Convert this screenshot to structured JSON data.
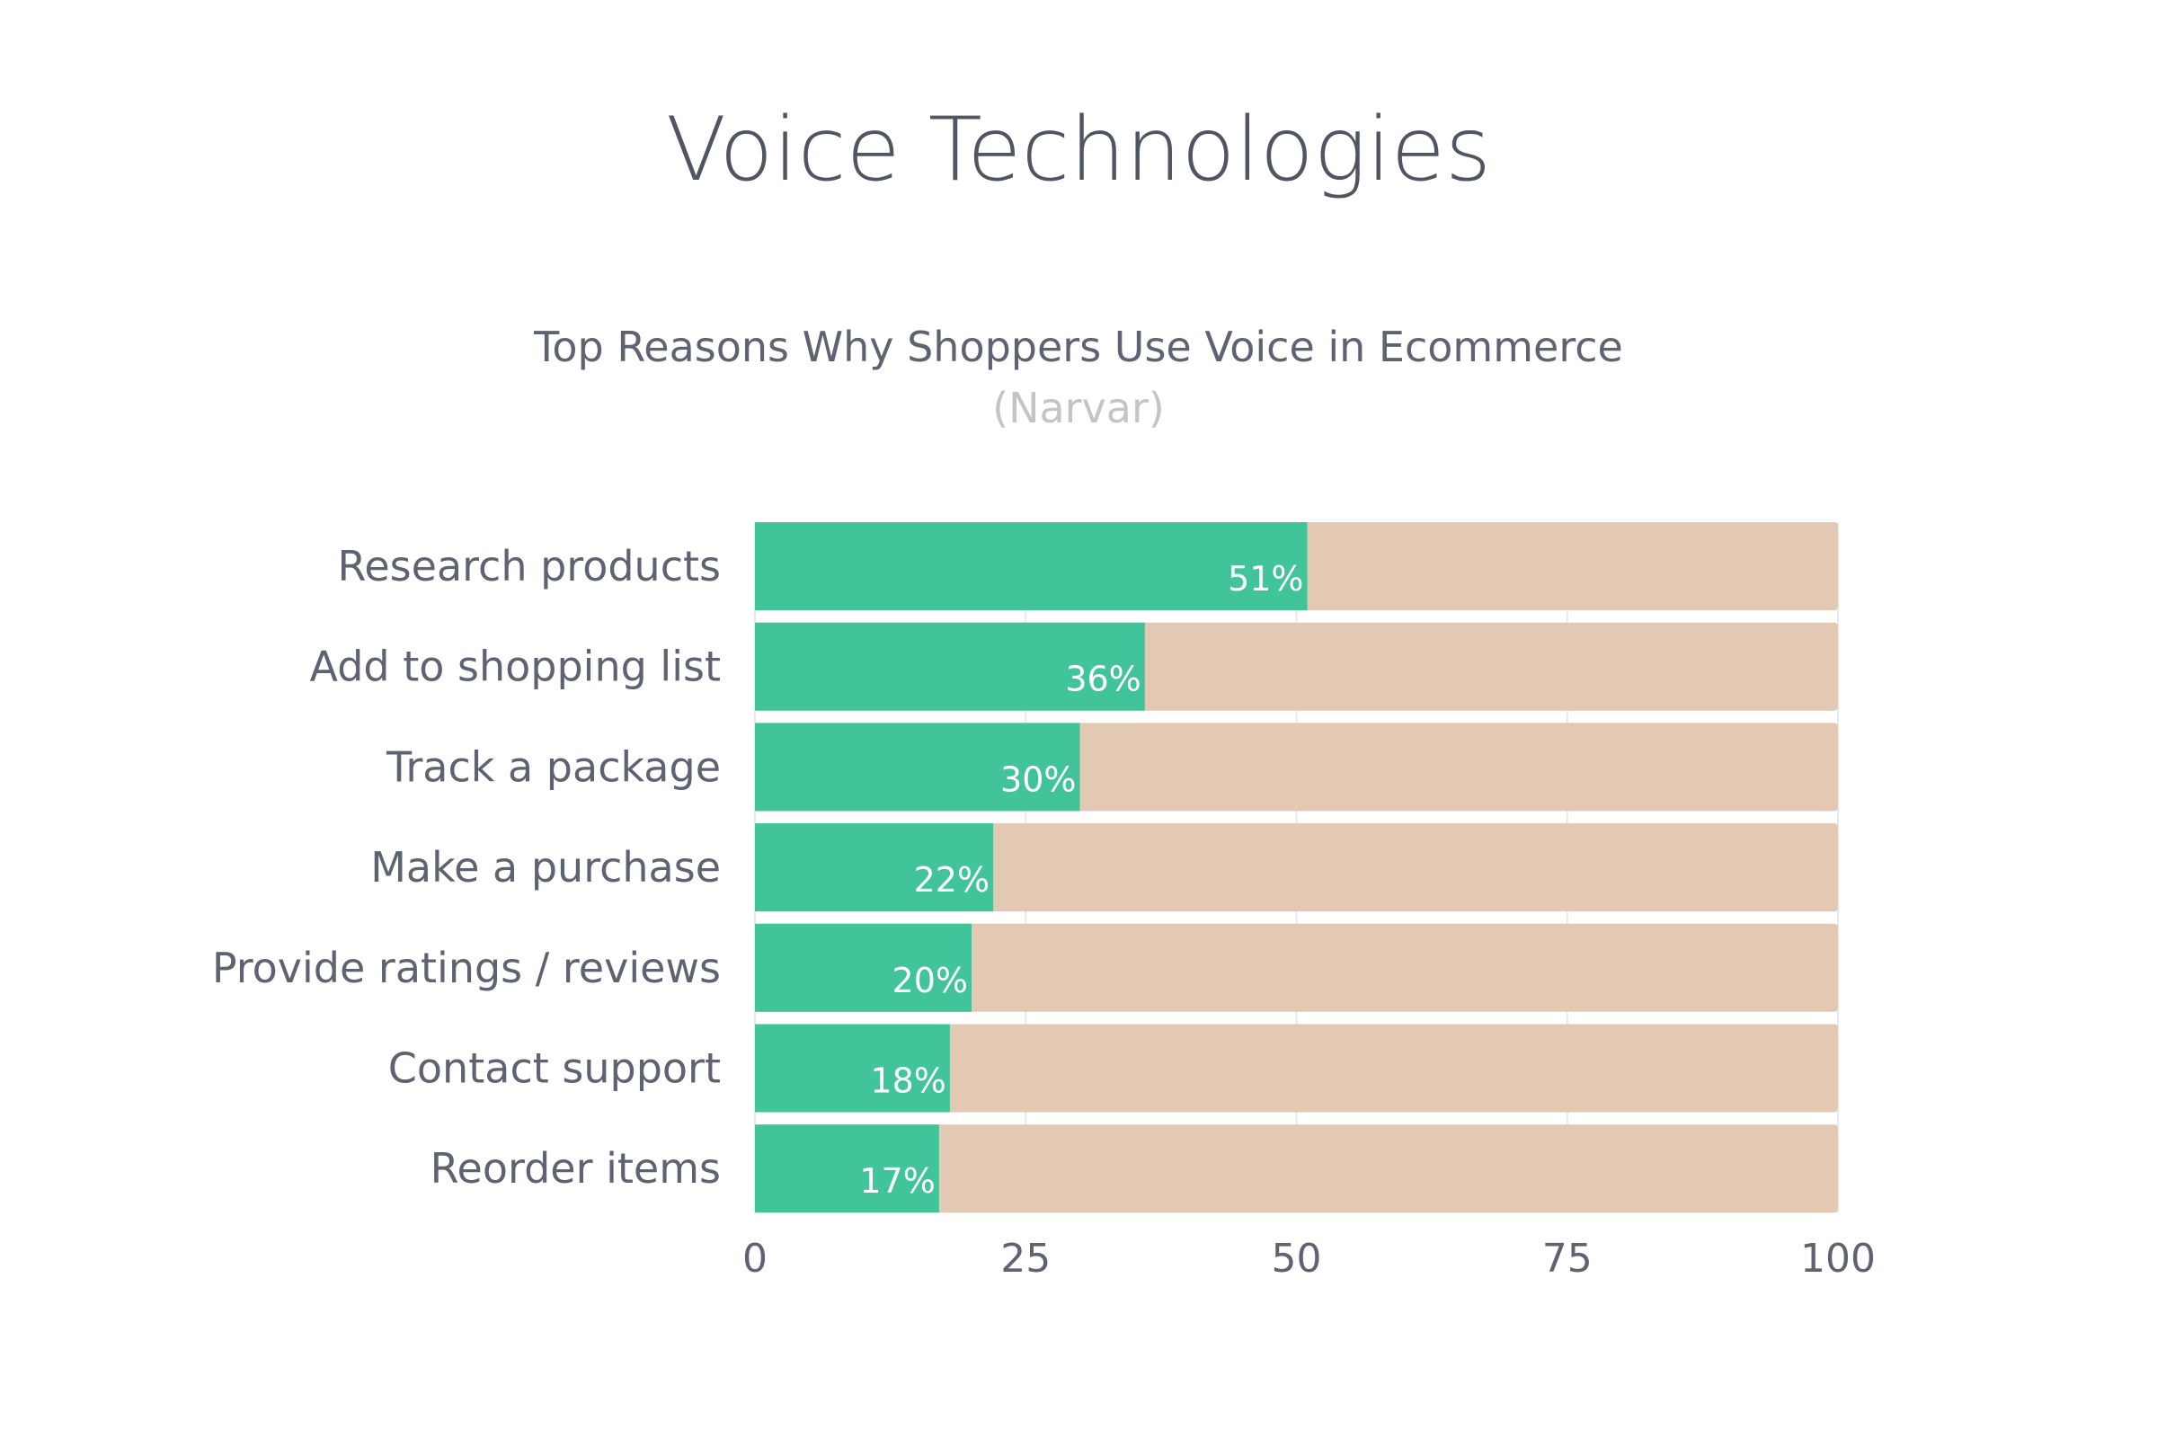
{
  "colors": {
    "value": "#41c49a",
    "remainder": "#e3c8b4",
    "background": "#ffffff"
  },
  "chart_data": {
    "type": "bar",
    "orientation": "horizontal",
    "stacked_to_total": true,
    "title": "Voice Technologies",
    "subtitle": "Top Reasons Why Shoppers Use Voice in Ecommerce",
    "source": "(Narvar)",
    "categories": [
      "Research products",
      "Add to shopping list",
      "Track a package",
      "Make a purchase",
      "Provide ratings / reviews",
      "Contact support",
      "Reorder items"
    ],
    "values": [
      51,
      36,
      30,
      22,
      20,
      18,
      17
    ],
    "value_labels": [
      "51%",
      "36%",
      "30%",
      "22%",
      "20%",
      "18%",
      "17%"
    ],
    "total": 100,
    "xlim": [
      0,
      100
    ],
    "xticks": [
      0,
      25,
      50,
      75,
      100
    ],
    "grid": true,
    "legend": "none"
  }
}
